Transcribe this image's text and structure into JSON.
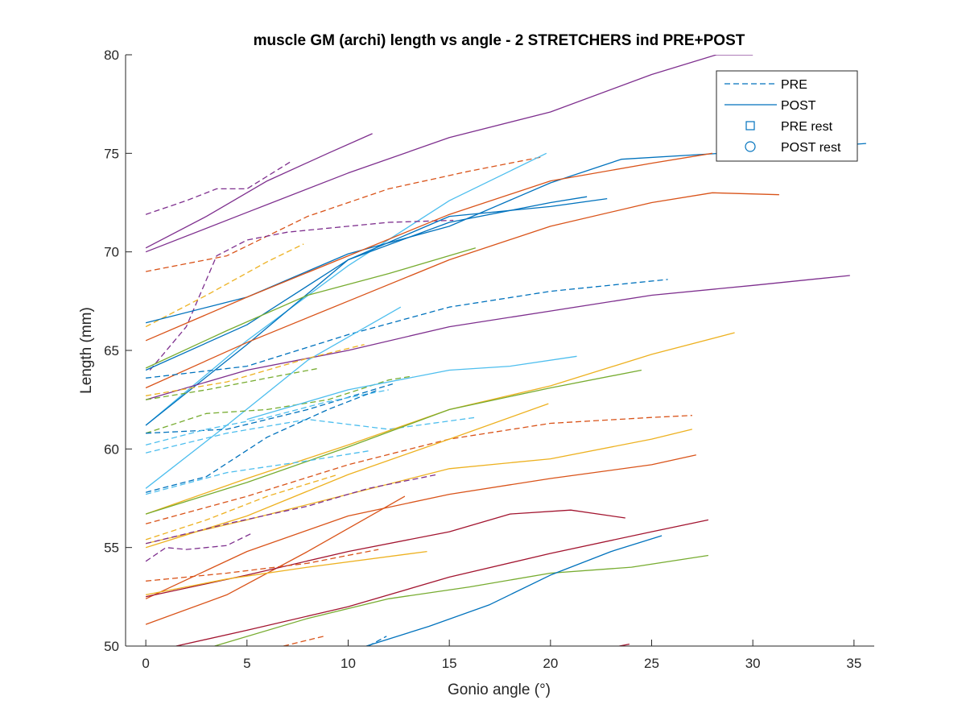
{
  "chart_data": {
    "type": "line",
    "title": "muscle GM (archi) length vs angle - 2 STRETCHERS ind PRE+POST",
    "xlabel": "Gonio angle (°)",
    "ylabel": "Length (mm)",
    "xlim": [
      -1,
      36
    ],
    "ylim": [
      50,
      80
    ],
    "xticks": [
      0,
      5,
      10,
      15,
      20,
      25,
      30,
      35
    ],
    "yticks": [
      50,
      55,
      60,
      65,
      70,
      75,
      80
    ],
    "grid": false,
    "legend_position": "top-right",
    "legend": [
      {
        "label": "PRE",
        "style": "dashed-line"
      },
      {
        "label": "POST",
        "style": "solid-line"
      },
      {
        "label": "PRE rest",
        "style": "square-marker"
      },
      {
        "label": "POST rest",
        "style": "circle-marker"
      }
    ],
    "colors": {
      "blue": "#0072BD",
      "orange": "#D95319",
      "yellow": "#EDB120",
      "purple": "#7E2F8E",
      "green": "#77AC30",
      "cyan": "#4DBEEE",
      "darkred": "#A2142F",
      "legend_line": "#0072BD"
    },
    "series": [
      {
        "color": "purple",
        "style": "solid",
        "x": [
          0,
          3,
          6,
          9,
          11.2
        ],
        "y": [
          70.2,
          71.8,
          73.6,
          75.0,
          76.0
        ]
      },
      {
        "color": "purple",
        "style": "solid",
        "x": [
          0,
          5,
          10,
          15,
          20,
          25,
          28.2,
          30.0
        ],
        "y": [
          70.0,
          72.0,
          74.0,
          75.8,
          77.1,
          79.0,
          80.0,
          80.0
        ]
      },
      {
        "color": "purple",
        "style": "dashed",
        "x": [
          0,
          2,
          3.5,
          5,
          7.2
        ],
        "y": [
          71.9,
          72.6,
          73.2,
          73.2,
          74.6
        ]
      },
      {
        "color": "orange",
        "style": "dashed",
        "x": [
          0,
          4,
          8,
          12,
          16,
          19.5
        ],
        "y": [
          69.0,
          69.8,
          71.8,
          73.2,
          74.1,
          74.8
        ]
      },
      {
        "color": "cyan",
        "style": "solid",
        "x": [
          0,
          5,
          10,
          15,
          19.8
        ],
        "y": [
          61.2,
          65.5,
          69.3,
          72.6,
          75.0
        ]
      },
      {
        "color": "purple",
        "style": "dashed",
        "x": [
          0.2,
          2,
          3.5,
          5,
          7,
          9,
          12,
          15.2
        ],
        "y": [
          64.0,
          66.2,
          69.8,
          70.6,
          71.0,
          71.2,
          71.5,
          71.6
        ]
      },
      {
        "color": "yellow",
        "style": "dashed",
        "x": [
          0,
          3,
          6,
          7.8
        ],
        "y": [
          66.2,
          67.8,
          69.5,
          70.4
        ]
      },
      {
        "color": "blue",
        "style": "solid",
        "x": [
          0,
          5,
          10,
          15,
          20,
          23.5,
          30,
          35.6
        ],
        "y": [
          66.4,
          67.7,
          69.9,
          71.3,
          73.5,
          74.7,
          75.1,
          75.5
        ]
      },
      {
        "color": "orange",
        "style": "solid",
        "x": [
          0,
          5,
          10,
          15,
          20,
          25,
          28
        ],
        "y": [
          65.5,
          67.7,
          69.8,
          71.9,
          73.6,
          74.5,
          75.0
        ]
      },
      {
        "color": "blue",
        "style": "solid",
        "x": [
          0,
          5,
          10,
          15,
          20,
          21.8
        ],
        "y": [
          64.0,
          66.3,
          69.6,
          71.5,
          72.5,
          72.8
        ]
      },
      {
        "color": "blue",
        "style": "solid",
        "x": [
          0,
          5,
          10,
          15,
          20,
          22.8
        ],
        "y": [
          61.2,
          65.3,
          69.6,
          71.8,
          72.3,
          72.7
        ]
      },
      {
        "color": "green",
        "style": "solid",
        "x": [
          0,
          4,
          8,
          12,
          16.3
        ],
        "y": [
          64.1,
          66.0,
          67.8,
          68.9,
          70.2
        ]
      },
      {
        "color": "orange",
        "style": "solid",
        "x": [
          0,
          5,
          10,
          15,
          20,
          25,
          28,
          31.3
        ],
        "y": [
          63.1,
          65.4,
          67.5,
          69.6,
          71.3,
          72.5,
          73.0,
          72.9
        ]
      },
      {
        "color": "blue",
        "style": "dashed",
        "x": [
          0,
          5,
          10,
          15,
          20,
          25.8
        ],
        "y": [
          63.6,
          64.2,
          65.8,
          67.2,
          68.0,
          68.6
        ]
      },
      {
        "color": "purple",
        "style": "solid",
        "x": [
          0,
          5,
          10,
          15,
          20,
          25,
          30,
          34.8
        ],
        "y": [
          62.5,
          64.0,
          65.0,
          66.2,
          67.0,
          67.8,
          68.3,
          68.8
        ]
      },
      {
        "color": "cyan",
        "style": "solid",
        "x": [
          0,
          4,
          8,
          12.6
        ],
        "y": [
          58.0,
          61.2,
          64.5,
          67.2
        ]
      },
      {
        "color": "yellow",
        "style": "dashed",
        "x": [
          0,
          4,
          8,
          10.8
        ],
        "y": [
          62.7,
          63.4,
          64.6,
          65.3
        ]
      },
      {
        "color": "green",
        "style": "dashed",
        "x": [
          0,
          3,
          6,
          8.6
        ],
        "y": [
          62.5,
          63.0,
          63.6,
          64.1
        ]
      },
      {
        "color": "green",
        "style": "dashed",
        "x": [
          0,
          3,
          6,
          9,
          12,
          13.2
        ],
        "y": [
          60.8,
          61.8,
          62.0,
          62.5,
          63.5,
          63.7
        ]
      },
      {
        "color": "cyan",
        "style": "solid",
        "x": [
          5,
          10,
          15,
          18,
          21.3
        ],
        "y": [
          61.5,
          63.0,
          64.0,
          64.2,
          64.7
        ]
      },
      {
        "color": "blue",
        "style": "dashed",
        "x": [
          0,
          4,
          8,
          12.2
        ],
        "y": [
          60.8,
          61.0,
          62.0,
          63.3
        ]
      },
      {
        "color": "cyan",
        "style": "dashed",
        "x": [
          0,
          3,
          6,
          9,
          12
        ],
        "y": [
          60.2,
          61.0,
          61.6,
          62.4,
          63.0
        ]
      },
      {
        "color": "cyan",
        "style": "dashed",
        "x": [
          0,
          4,
          8,
          12,
          16.3
        ],
        "y": [
          59.8,
          60.8,
          61.5,
          61.0,
          61.6
        ]
      },
      {
        "color": "yellow",
        "style": "solid",
        "x": [
          0,
          5,
          10,
          15,
          20,
          25,
          29.1
        ],
        "y": [
          56.7,
          58.5,
          60.2,
          62.0,
          63.2,
          64.8,
          65.9
        ]
      },
      {
        "color": "green",
        "style": "solid",
        "x": [
          0,
          5,
          10,
          15,
          20,
          24.5
        ],
        "y": [
          56.7,
          58.3,
          60.1,
          62.0,
          63.1,
          64.0
        ]
      },
      {
        "color": "blue",
        "style": "dashed",
        "x": [
          0,
          3,
          6,
          9,
          11.5
        ],
        "y": [
          57.8,
          58.6,
          60.6,
          62.0,
          63.0
        ]
      },
      {
        "color": "cyan",
        "style": "dashed",
        "x": [
          0,
          4,
          8,
          11
        ],
        "y": [
          57.7,
          58.8,
          59.4,
          59.9
        ]
      },
      {
        "color": "orange",
        "style": "dashed",
        "x": [
          0,
          5,
          10,
          15,
          20,
          25,
          27
        ],
        "y": [
          56.2,
          57.6,
          59.2,
          60.5,
          61.3,
          61.6,
          61.7
        ]
      },
      {
        "color": "yellow",
        "style": "solid",
        "x": [
          0,
          5,
          10,
          15,
          19.9
        ],
        "y": [
          55.0,
          56.6,
          58.7,
          60.5,
          62.3
        ]
      },
      {
        "color": "yellow",
        "style": "solid",
        "x": [
          0,
          5,
          10,
          15,
          20,
          25,
          27
        ],
        "y": [
          55.2,
          56.4,
          57.7,
          59.0,
          59.5,
          60.5,
          61.0
        ]
      },
      {
        "color": "yellow",
        "style": "dashed",
        "x": [
          0,
          3,
          6,
          9.5
        ],
        "y": [
          55.4,
          56.4,
          57.6,
          58.7
        ]
      },
      {
        "color": "purple",
        "style": "dashed",
        "x": [
          0,
          4,
          8,
          11,
          14.4
        ],
        "y": [
          55.2,
          56.2,
          57.1,
          58.0,
          58.7
        ]
      },
      {
        "color": "orange",
        "style": "solid",
        "x": [
          0,
          5,
          10,
          15,
          20,
          25,
          27.2
        ],
        "y": [
          52.4,
          54.8,
          56.6,
          57.7,
          58.5,
          59.2,
          59.7
        ]
      },
      {
        "color": "purple",
        "style": "dashed",
        "x": [
          0,
          1,
          2,
          3,
          4,
          5.2
        ],
        "y": [
          54.3,
          55.0,
          54.9,
          55.0,
          55.1,
          55.7
        ]
      },
      {
        "color": "orange",
        "style": "solid",
        "x": [
          0,
          4,
          8,
          12.8
        ],
        "y": [
          51.1,
          52.6,
          54.8,
          57.6
        ]
      },
      {
        "color": "darkred",
        "style": "solid",
        "x": [
          0,
          5,
          10,
          15,
          18,
          21,
          23.7
        ],
        "y": [
          52.5,
          53.6,
          54.8,
          55.8,
          56.7,
          56.9,
          56.5
        ]
      },
      {
        "color": "orange",
        "style": "dashed",
        "x": [
          0,
          4,
          8,
          11.5
        ],
        "y": [
          53.3,
          53.7,
          54.2,
          54.9
        ]
      },
      {
        "color": "yellow",
        "style": "solid",
        "x": [
          0,
          4,
          8,
          13.9
        ],
        "y": [
          52.6,
          53.4,
          54.0,
          54.8
        ]
      },
      {
        "color": "darkred",
        "style": "solid",
        "x": [
          1.5,
          5,
          10,
          15,
          20,
          25,
          27.8
        ],
        "y": [
          50.0,
          50.8,
          52.0,
          53.5,
          54.7,
          55.8,
          56.4
        ]
      },
      {
        "color": "green",
        "style": "solid",
        "x": [
          3.4,
          8,
          12,
          16,
          20,
          24,
          27.8
        ],
        "y": [
          50.0,
          51.4,
          52.4,
          53.0,
          53.7,
          54.0,
          54.6
        ]
      },
      {
        "color": "blue",
        "style": "solid",
        "x": [
          10.9,
          14,
          17,
          20,
          23,
          25.5
        ],
        "y": [
          50.0,
          51.0,
          52.1,
          53.6,
          54.8,
          55.6
        ]
      },
      {
        "color": "orange",
        "style": "dashed",
        "x": [
          6.8,
          8.8
        ],
        "y": [
          50.0,
          50.5
        ]
      },
      {
        "color": "blue",
        "style": "dashed",
        "x": [
          11.0,
          11.9
        ],
        "y": [
          50.0,
          50.5
        ]
      },
      {
        "color": "darkred",
        "style": "solid",
        "x": [
          23.4,
          23.9
        ],
        "y": [
          50.0,
          50.1
        ]
      }
    ]
  }
}
